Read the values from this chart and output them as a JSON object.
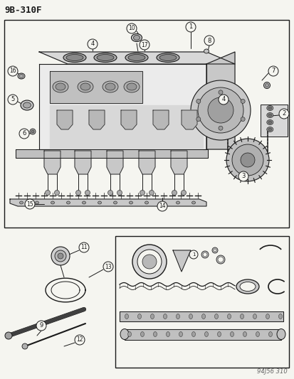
{
  "title": "9B-310F",
  "footer": "94J56 310",
  "bg_color": "#f5f5f0",
  "line_color": "#1a1a1a",
  "text_color": "#1a1a1a",
  "label_bg": "#f5f5f0",
  "figsize": [
    4.14,
    5.33
  ],
  "dpi": 100
}
